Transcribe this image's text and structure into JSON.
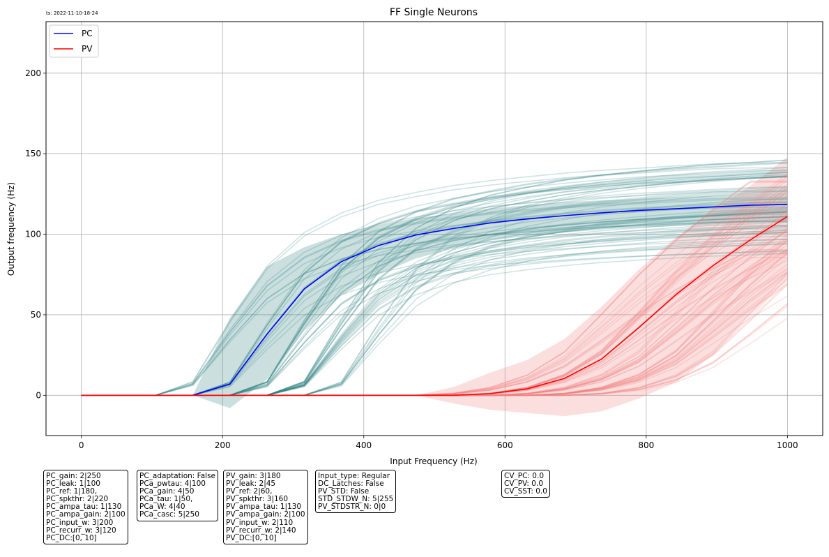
{
  "timestamp": "ts: 2022-11-10-18-24",
  "chart_data": {
    "type": "line",
    "title": "FF Single Neurons",
    "xlabel": "Input Frequency (Hz)",
    "ylabel": "Output frequency (Hz)",
    "xlim": [
      -50,
      1050
    ],
    "ylim": [
      -25,
      232
    ],
    "xticks": [
      "0",
      "200",
      "400",
      "600",
      "800",
      "1000"
    ],
    "xtick_values": [
      0,
      200,
      400,
      600,
      800,
      1000
    ],
    "yticks": [
      "0",
      "50",
      "100",
      "150",
      "200"
    ],
    "ytick_values": [
      0,
      50,
      100,
      150,
      200
    ],
    "grid": true,
    "legend_position": "top-left",
    "x": [
      0,
      52.6,
      105.3,
      157.9,
      210.5,
      263.2,
      315.8,
      368.4,
      421.1,
      473.7,
      526.3,
      578.9,
      631.6,
      684.2,
      736.8,
      789.5,
      842.1,
      894.7,
      947.4,
      1000
    ],
    "series": [
      {
        "name": "PC",
        "color": "#0000ff",
        "band_color": "#2f7f7f",
        "values": [
          0,
          0,
          0,
          0,
          7,
          38,
          66,
          83,
          93,
          99.5,
          103.5,
          107,
          109.5,
          111.5,
          113.3,
          114.8,
          115.8,
          117,
          118,
          118.5
        ],
        "band_upper": [
          0,
          0,
          0,
          0,
          48,
          80,
          92,
          100,
          106,
          110,
          113,
          116,
          118,
          120,
          121,
          122,
          123,
          124,
          125,
          126
        ],
        "band_lower": [
          0,
          0,
          0,
          0,
          -8,
          10,
          40,
          62,
          75,
          85,
          91,
          96,
          99,
          101,
          103,
          104,
          105,
          106,
          107,
          108
        ]
      },
      {
        "name": "PV",
        "color": "#ff0000",
        "band_color": "#f08080",
        "values": [
          0,
          0,
          0,
          0,
          0,
          0,
          0,
          0,
          0,
          0,
          0,
          1,
          4,
          10.5,
          22.5,
          42,
          62.5,
          80.5,
          96.5,
          111
        ],
        "band_upper": [
          0,
          0,
          0,
          0,
          0,
          0,
          0,
          0,
          0,
          0,
          5,
          14,
          22,
          35,
          55,
          78,
          98,
          115,
          130,
          148
        ],
        "band_lower": [
          0,
          0,
          0,
          0,
          0,
          0,
          0,
          0,
          0,
          0,
          -5,
          -9,
          -11,
          -13,
          -10,
          -2,
          8,
          25,
          50,
          72
        ]
      }
    ]
  },
  "param_boxes": [
    {
      "lines": [
        "PC_gain: 2|250",
        "PC_leak: 1|100",
        "PC_ref: 1|180,",
        "PC_spkthr: 2|220",
        "PC_ampa_tau: 1|130",
        "PC_ampa_gain: 2|100",
        "PC_input_w: 3|200",
        "PC_recurr_w: 3|120",
        "PC_DC:[0, 10]"
      ]
    },
    {
      "lines": [
        "PC_adaptation: False",
        "PCa_pwtau: 4|100",
        "PCa_gain: 4|50",
        "PCa_tau: 1|50,",
        "PCa_W: 4|40",
        "PCa_casc: 5|250"
      ]
    },
    {
      "lines": [
        "PV_gain: 3|180",
        "PV_leak: 2|45",
        "PV_ref: 2|60,",
        "PV_spkthr: 3|160",
        "PV_ampa_tau: 1|130",
        "PV_ampa_gain: 2|100",
        "PV_input_w: 2|110",
        "PV_recurr_w: 2|140",
        "PV_DC:[0, 10]"
      ]
    },
    {
      "lines": [
        "Input_type: Regular",
        "DC_Latches: False",
        "PV_STD: False",
        "STD_STDW_N: 5|255",
        "PV_STDSTR_N: 0|0"
      ]
    },
    {
      "lines": [
        "CV_PC: 0.0",
        "CV_PV: 0.0",
        "CV_SST: 0.0"
      ]
    }
  ]
}
